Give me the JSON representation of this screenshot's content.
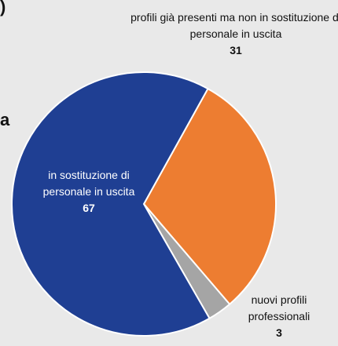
{
  "chart_data": {
    "type": "pie",
    "labels": [
      "profili già presenti ma non in sostituzione di personale in uscita",
      "nuovi profili professionali",
      "in sostituzione di personale in uscita"
    ],
    "values": [
      31,
      3,
      67
    ],
    "colors": [
      "#ed7d31",
      "#a5a5a5",
      "#1f3f93"
    ],
    "annotations": [
      ")",
      "a"
    ]
  }
}
